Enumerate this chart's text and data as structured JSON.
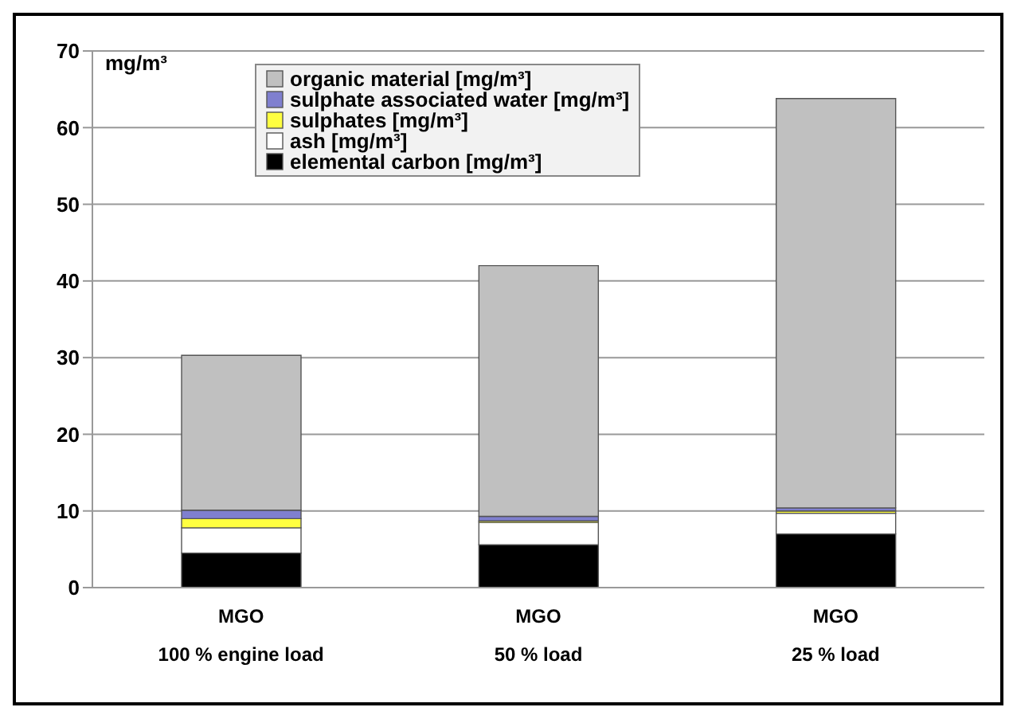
{
  "chart_data": {
    "type": "bar",
    "stacked": true,
    "ylabel": "mg/m³",
    "categories": [
      "MGO\n100 % engine load",
      "MGO\n50 % load",
      "MGO\n25 % load"
    ],
    "series": [
      {
        "name": "elemental carbon [mg/m³]",
        "color": "#000000",
        "values": [
          4.5,
          5.6,
          7.0
        ]
      },
      {
        "name": "ash [mg/m³]",
        "color": "#ffffff",
        "values": [
          3.3,
          2.9,
          2.7
        ]
      },
      {
        "name": "sulphates [mg/m³]",
        "color": "#ffff40",
        "values": [
          1.2,
          0.2,
          0.3
        ]
      },
      {
        "name": "sulphate associated water [mg/m³]",
        "color": "#7f7fcf",
        "values": [
          1.1,
          0.6,
          0.4
        ]
      },
      {
        "name": "organic material [mg/m³]",
        "color": "#c0c0c0",
        "values": [
          20.2,
          32.7,
          53.4
        ]
      }
    ],
    "ylim": [
      0,
      70
    ],
    "yticks": [
      0,
      10,
      20,
      30,
      40,
      50,
      60,
      70
    ],
    "grid": "y",
    "legend": "top"
  }
}
